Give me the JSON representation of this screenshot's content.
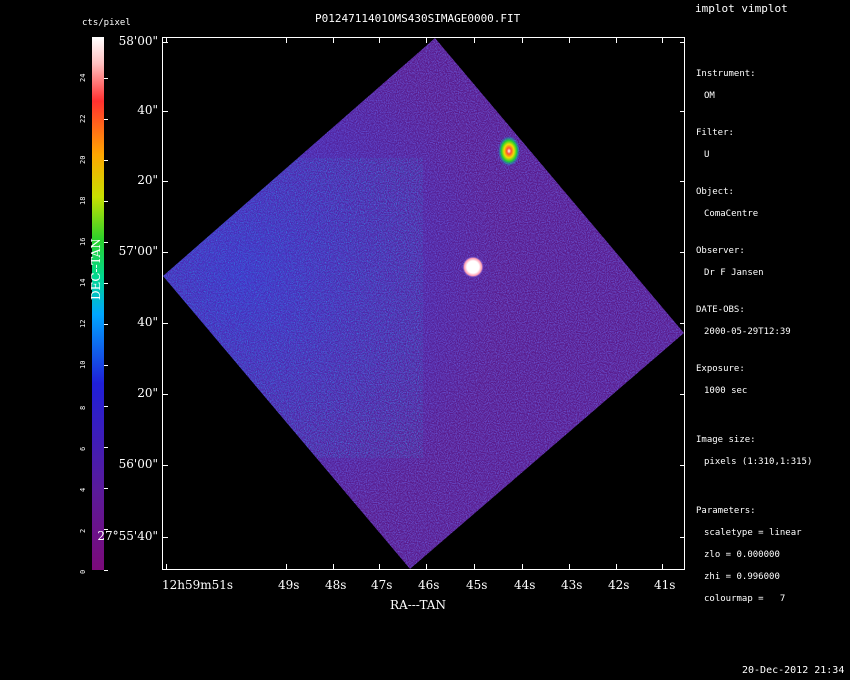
{
  "app": {
    "menu_title": "implot vimplot"
  },
  "image": {
    "title": "P0124711401OMS430SIMAGE0000.FIT"
  },
  "colorbar": {
    "label": "cts/pixel",
    "ticks": [
      "0",
      "2",
      "4",
      "6",
      "8",
      "10",
      "12",
      "14",
      "16",
      "18",
      "20",
      "22",
      "24"
    ]
  },
  "axes": {
    "xlabel": "RA---TAN",
    "ylabel": "DEC--TAN",
    "x_ticks": [
      "12h59m51s",
      "49s",
      "48s",
      "47s",
      "46s",
      "45s",
      "44s",
      "43s",
      "42s",
      "41s"
    ],
    "y_ticks": [
      "58'00\"",
      "40\"",
      "20\"",
      "57'00\"",
      "40\"",
      "20\"",
      "56'00\"",
      "27°55'40\""
    ]
  },
  "header": {
    "instrument_label": "Instrument:",
    "instrument_value": "OM",
    "filter_label": "Filter:",
    "filter_value": "U",
    "object_label": "Object:",
    "object_value": "ComaCentre",
    "observer_label": "Observer:",
    "observer_value": "Dr F Jansen",
    "dateobs_label": "DATE-OBS:",
    "dateobs_value": "2000-05-29T12:39",
    "exposure_label": "Exposure:",
    "exposure_value": "1000 sec",
    "imagesize_label": "Image size:",
    "imagesize_value": "pixels (1:310,1:315)",
    "params_label": "Parameters:",
    "scaletype": "scaletype = linear",
    "zlo": "zlo = 0.000000",
    "zhi": "zhi = 0.996000",
    "colourmap": "colourmap =   7"
  },
  "footer": {
    "timestamp": "20-Dec-2012 21:34"
  },
  "colors": {
    "background": "#000000",
    "image_base": "#5a1a8a",
    "noise_blue": "#2a2ae0",
    "noise_cyan": "#00c8ff",
    "source_white": "#ffffff"
  }
}
